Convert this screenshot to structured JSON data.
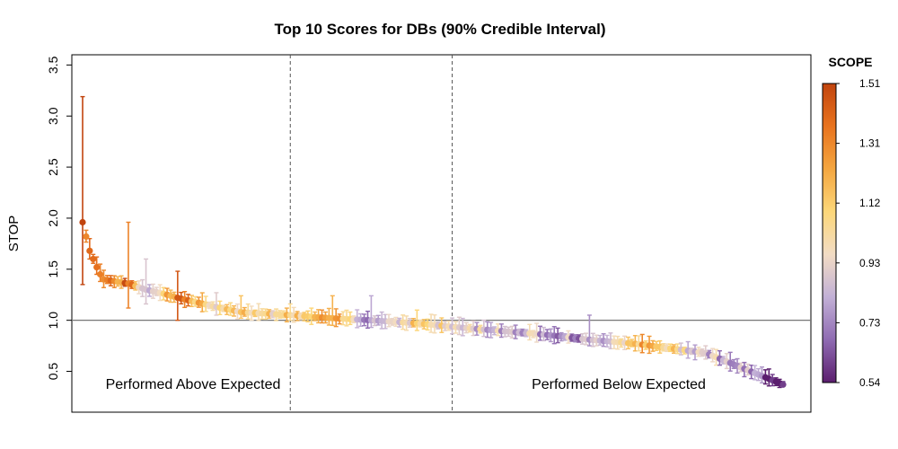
{
  "chart_data": {
    "type": "scatter",
    "title": "Top 10 Scores for DBs (90% Credible Interval)",
    "xlabel": "",
    "ylabel": "STOP",
    "ylim": [
      0.1,
      3.6
    ],
    "y_ticks": [
      "0.5",
      "1.0",
      "1.5",
      "2.0",
      "2.5",
      "3.0",
      "3.5"
    ],
    "reference_line_y": 1.0,
    "vertical_dividers_x": [
      60,
      106
    ],
    "annotations": {
      "left": "Performed Above Expected",
      "right": "Performed Below Expected"
    },
    "color_legend": {
      "title": "SCOPE",
      "ticks": [
        "1.51",
        "1.31",
        "1.12",
        "0.93",
        "0.73",
        "0.54"
      ],
      "min": 0.54,
      "max": 1.51,
      "colors": [
        "#5b1e6e",
        "#8f6bb2",
        "#c2b0d6",
        "#f2dcc4",
        "#fcd779",
        "#f4a640",
        "#e8731e",
        "#c1440e"
      ]
    },
    "grid": false,
    "n_points": 200,
    "series": [
      {
        "x": [
          1,
          3,
          5,
          6,
          7,
          14,
          19,
          24,
          28,
          39,
          46,
          60,
          72,
          83,
          96,
          108,
          132,
          145,
          158,
          178,
          200
        ],
        "y": [
          1.96,
          1.68,
          1.52,
          1.45,
          1.4,
          1.36,
          1.3,
          1.26,
          1.22,
          1.13,
          1.08,
          1.05,
          1.02,
          1.0,
          0.97,
          0.93,
          0.86,
          0.81,
          0.77,
          0.68,
          0.37
        ],
        "lower": [
          1.35,
          1.6,
          1.45,
          1.38,
          1.32,
          1.12,
          1.16,
          1.2,
          1.0,
          1.05,
          1.02,
          1.0,
          0.95,
          0.93,
          0.9,
          0.86,
          0.8,
          0.75,
          0.7,
          0.62,
          0.37
        ],
        "upper": [
          3.19,
          1.8,
          1.62,
          1.55,
          1.49,
          1.96,
          1.6,
          1.32,
          1.48,
          1.27,
          1.24,
          1.16,
          1.24,
          1.24,
          1.1,
          1.03,
          0.93,
          1.05,
          0.85,
          0.75,
          0.4
        ],
        "color": [
          1.51,
          1.4,
          1.38,
          1.34,
          1.3,
          1.33,
          0.88,
          1.1,
          1.45,
          0.9,
          1.15,
          1.05,
          1.2,
          0.8,
          1.1,
          0.9,
          0.85,
          0.75,
          1.2,
          0.9,
          0.6
        ]
      }
    ]
  }
}
